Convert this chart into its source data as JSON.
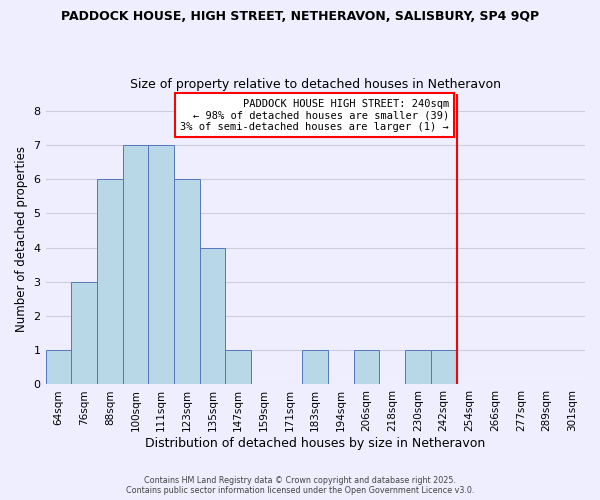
{
  "title1": "PADDOCK HOUSE, HIGH STREET, NETHERAVON, SALISBURY, SP4 9QP",
  "title2": "Size of property relative to detached houses in Netheravon",
  "xlabel": "Distribution of detached houses by size in Netheravon",
  "ylabel": "Number of detached properties",
  "bar_labels": [
    "64sqm",
    "76sqm",
    "88sqm",
    "100sqm",
    "111sqm",
    "123sqm",
    "135sqm",
    "147sqm",
    "159sqm",
    "171sqm",
    "183sqm",
    "194sqm",
    "206sqm",
    "218sqm",
    "230sqm",
    "242sqm",
    "254sqm",
    "266sqm",
    "277sqm",
    "289sqm",
    "301sqm"
  ],
  "bar_heights": [
    1,
    3,
    6,
    7,
    7,
    6,
    4,
    1,
    0,
    0,
    1,
    0,
    1,
    0,
    1,
    1,
    0,
    0,
    0,
    0,
    0
  ],
  "bar_color": "#B8D8E8",
  "bar_edge_color": "#5577BB",
  "grid_color": "#CCCCDD",
  "background_color": "#EEEEFF",
  "vline_color": "red",
  "vline_index": 15.5,
  "annotation_text": "PADDOCK HOUSE HIGH STREET: 240sqm\n← 98% of detached houses are smaller (39)\n3% of semi-detached houses are larger (1) →",
  "annotation_box_color": "white",
  "annotation_box_edge_color": "red",
  "ylim": [
    0,
    8.5
  ],
  "yticks": [
    0,
    1,
    2,
    3,
    4,
    5,
    6,
    7,
    8
  ],
  "footer1": "Contains HM Land Registry data © Crown copyright and database right 2025.",
  "footer2": "Contains public sector information licensed under the Open Government Licence v3.0."
}
